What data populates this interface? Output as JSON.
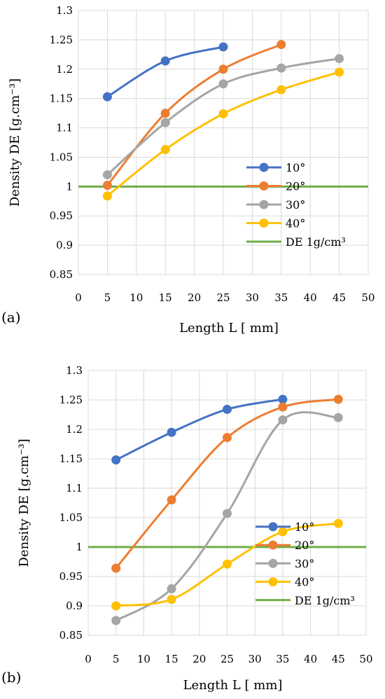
{
  "chart_data": [
    {
      "type": "line",
      "panel_label": "(a)",
      "xlabel": "Length L [ mm]",
      "ylabel": "Density DE [g.cm⁻³]",
      "xlim": [
        0,
        50
      ],
      "ylim": [
        0.85,
        1.3
      ],
      "xticks": [
        "0",
        "5",
        "10",
        "15",
        "20",
        "25",
        "30",
        "35",
        "40",
        "45",
        "50"
      ],
      "yticks": [
        "0.85",
        "0.9",
        "0.95",
        "1",
        "1.05",
        "1.1",
        "1.15",
        "1.2",
        "1.25",
        "1.3"
      ],
      "grid": true,
      "legend_position": "bottom-right",
      "series": [
        {
          "name": "10°",
          "color": "#4472c4",
          "x": [
            5,
            15,
            25
          ],
          "y": [
            1.153,
            1.214,
            1.238
          ]
        },
        {
          "name": "20°",
          "color": "#ed7d31",
          "x": [
            5,
            15,
            25,
            35
          ],
          "y": [
            1.002,
            1.125,
            1.2,
            1.242
          ]
        },
        {
          "name": "30°",
          "color": "#a5a5a5",
          "x": [
            5,
            15,
            25,
            35,
            45
          ],
          "y": [
            1.02,
            1.109,
            1.175,
            1.202,
            1.218
          ]
        },
        {
          "name": "40°",
          "color": "#ffc000",
          "x": [
            5,
            15,
            25,
            35,
            45
          ],
          "y": [
            0.984,
            1.063,
            1.124,
            1.165,
            1.195
          ]
        }
      ],
      "reference_line": {
        "name": "DE 1g/cm³",
        "color": "#70ad47",
        "y": 1.0
      }
    },
    {
      "type": "line",
      "panel_label": "(b)",
      "xlabel": "Length L [ mm]",
      "ylabel": "Density DE [g.cm⁻³]",
      "xlim": [
        0,
        50
      ],
      "ylim": [
        0.85,
        1.3
      ],
      "xticks": [
        "0",
        "5",
        "10",
        "15",
        "20",
        "25",
        "30",
        "35",
        "40",
        "45",
        "50"
      ],
      "yticks": [
        "0.85",
        "0.9",
        "0.95",
        "1",
        "1.05",
        "1.1",
        "1.15",
        "1.2",
        "1.25",
        "1.3"
      ],
      "grid": true,
      "legend_position": "bottom-right",
      "series": [
        {
          "name": "10°",
          "color": "#4472c4",
          "x": [
            5,
            15,
            25,
            35
          ],
          "y": [
            1.148,
            1.195,
            1.234,
            1.251
          ]
        },
        {
          "name": "20°",
          "color": "#ed7d31",
          "x": [
            5,
            15,
            25,
            35,
            45
          ],
          "y": [
            0.964,
            1.08,
            1.186,
            1.238,
            1.251
          ]
        },
        {
          "name": "30°",
          "color": "#a5a5a5",
          "x": [
            5,
            15,
            25,
            35,
            45
          ],
          "y": [
            0.875,
            0.929,
            1.057,
            1.216,
            1.22
          ]
        },
        {
          "name": "40°",
          "color": "#ffc000",
          "x": [
            5,
            15,
            25,
            35,
            45
          ],
          "y": [
            0.9,
            0.911,
            0.971,
            1.026,
            1.04
          ]
        }
      ],
      "reference_line": {
        "name": "DE 1g/cm³",
        "color": "#70ad47",
        "y": 1.0
      }
    }
  ]
}
